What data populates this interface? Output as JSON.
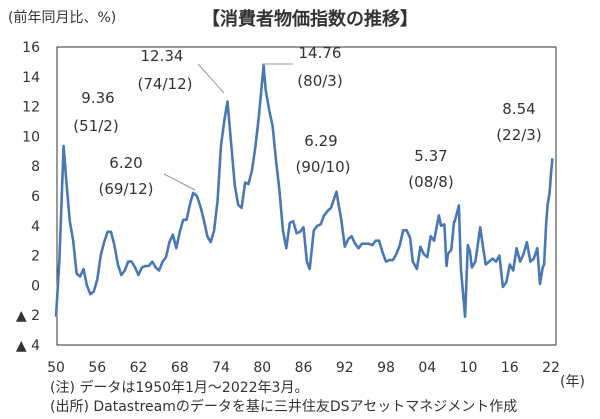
{
  "title": "【消費者物価指数の推移】",
  "unit_label": "(前年同月比、%)",
  "x_unit_label": "(年)",
  "note": "(注) データは1950年1月～2022年3月。",
  "source": "(出所) Datastreamのデータを基に三井住友DSアセットマネジメント作成",
  "colors": {
    "line": "#4a78b4",
    "frame": "#333333",
    "leader": "#999999"
  },
  "chart_data": {
    "type": "line",
    "title": "【消費者物価指数の推移】",
    "xlabel": "(年)",
    "ylabel": "(前年同月比、%)",
    "xlim": [
      1950,
      2022.2
    ],
    "ylim": [
      -4,
      16
    ],
    "grid": false,
    "x_ticks": [
      1950,
      1956,
      1962,
      1968,
      1974,
      1980,
      1986,
      1992,
      1998,
      2004,
      2010,
      2016,
      2022
    ],
    "x_tick_labels": [
      "50",
      "56",
      "62",
      "68",
      "74",
      "80",
      "86",
      "92",
      "98",
      "04",
      "10",
      "16",
      "22"
    ],
    "y_ticks": [
      16,
      14,
      12,
      10,
      8,
      6,
      4,
      2,
      0,
      -2,
      -4
    ],
    "y_tick_labels": [
      "16",
      "14",
      "12",
      "10",
      "8",
      "6",
      "4",
      "2",
      "0",
      "▲ 2",
      "▲ 4"
    ],
    "annotations": [
      {
        "value": "9.36",
        "date": "(51/2)",
        "x": 1951.1,
        "y": 9.36
      },
      {
        "value": "12.34",
        "date": "(74/12)",
        "x": 1974.95,
        "y": 12.34
      },
      {
        "value": "14.76",
        "date": "(80/3)",
        "x": 1980.2,
        "y": 14.76
      },
      {
        "value": "6.20",
        "date": "(69/12)",
        "x": 1969.95,
        "y": 6.2
      },
      {
        "value": "6.29",
        "date": "(90/10)",
        "x": 1990.8,
        "y": 6.29
      },
      {
        "value": "5.37",
        "date": "(08/8)",
        "x": 2008.6,
        "y": 5.37
      },
      {
        "value": "8.54",
        "date": "(22/3)",
        "x": 2022.2,
        "y": 8.54
      }
    ],
    "series": [
      {
        "x": [
          1950,
          1950.5,
          1951.1,
          1951.5,
          1952,
          1952.5,
          1953,
          1953.5,
          1954,
          1954.5,
          1955,
          1955.5,
          1956,
          1956.5,
          1957,
          1957.5,
          1958,
          1958.5,
          1959,
          1959.5,
          1960,
          1960.5,
          1961,
          1961.5,
          1962,
          1962.5,
          1963,
          1963.5,
          1964,
          1964.5,
          1965,
          1965.5,
          1966,
          1966.5,
          1967,
          1967.5,
          1968,
          1968.5,
          1969,
          1969.5,
          1969.95,
          1970.5,
          1971,
          1971.5,
          1972,
          1972.5,
          1973,
          1973.5,
          1974,
          1974.5,
          1974.95,
          1975.5,
          1976,
          1976.5,
          1977,
          1977.5,
          1978,
          1978.5,
          1979,
          1979.5,
          1980.2,
          1980.5,
          1981,
          1981.5,
          1982,
          1982.5,
          1983,
          1983.5,
          1984,
          1984.5,
          1985,
          1985.5,
          1986,
          1986.5,
          1986.9,
          1987.5,
          1988,
          1988.5,
          1989,
          1989.5,
          1990,
          1990.8,
          1991,
          1991.5,
          1992,
          1992.5,
          1993,
          1993.5,
          1994,
          1994.5,
          1995,
          1995.5,
          1996,
          1996.5,
          1997,
          1997.5,
          1998,
          1998.5,
          1999,
          1999.5,
          2000,
          2000.5,
          2001,
          2001.5,
          2001.9,
          2002.5,
          2003,
          2003.5,
          2004,
          2004.5,
          2005,
          2005.7,
          2006,
          2006.5,
          2006.8,
          2007,
          2007.5,
          2007.9,
          2008,
          2008.6,
          2008.9,
          2009.5,
          2009.9,
          2010.2,
          2010.5,
          2011,
          2011.7,
          2012,
          2012.5,
          2013,
          2013.5,
          2014,
          2014.5,
          2015,
          2015.5,
          2016,
          2016.5,
          2017,
          2017.5,
          2018,
          2018.5,
          2019,
          2019.5,
          2020,
          2020.4,
          2020.8,
          2021,
          2021.3,
          2021.5,
          2021.8,
          2022,
          2022.2
        ],
        "y": [
          -2.1,
          1.7,
          9.36,
          7.0,
          4.3,
          3.0,
          0.8,
          0.6,
          1.1,
          0.0,
          -0.6,
          -0.4,
          0.4,
          2.0,
          2.9,
          3.6,
          3.6,
          2.7,
          1.4,
          0.7,
          1.0,
          1.6,
          1.6,
          1.2,
          0.7,
          1.2,
          1.3,
          1.3,
          1.6,
          1.2,
          1.0,
          1.6,
          1.9,
          2.9,
          3.4,
          2.5,
          3.6,
          4.4,
          4.4,
          5.5,
          6.2,
          6.0,
          5.3,
          4.4,
          3.3,
          2.9,
          3.7,
          5.7,
          9.4,
          11.1,
          12.34,
          9.4,
          6.7,
          5.4,
          5.2,
          6.9,
          6.8,
          7.7,
          9.3,
          11.3,
          14.76,
          13.1,
          11.8,
          10.7,
          8.4,
          6.4,
          3.7,
          2.5,
          4.2,
          4.3,
          3.5,
          3.6,
          3.9,
          1.6,
          1.1,
          3.7,
          4.0,
          4.1,
          4.7,
          5.0,
          5.2,
          6.29,
          5.7,
          4.4,
          2.6,
          3.1,
          3.3,
          2.8,
          2.5,
          2.8,
          2.8,
          2.8,
          2.7,
          3.0,
          3.0,
          2.2,
          1.6,
          1.7,
          1.7,
          2.1,
          2.7,
          3.7,
          3.7,
          3.2,
          1.6,
          1.1,
          2.6,
          2.1,
          1.9,
          3.3,
          3.0,
          4.7,
          4.0,
          4.1,
          1.3,
          2.1,
          2.4,
          4.3,
          4.3,
          5.37,
          1.1,
          -2.1,
          2.7,
          2.3,
          1.2,
          1.6,
          3.9,
          2.9,
          1.4,
          1.6,
          1.8,
          1.6,
          2.0,
          -0.1,
          0.2,
          1.4,
          1.0,
          2.5,
          1.6,
          2.1,
          2.9,
          1.6,
          1.8,
          2.5,
          0.1,
          1.2,
          1.4,
          4.2,
          5.4,
          6.2,
          7.5,
          8.54
        ]
      }
    ]
  }
}
